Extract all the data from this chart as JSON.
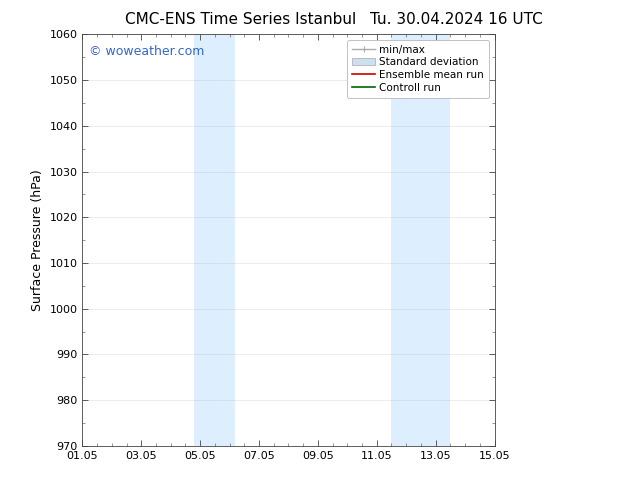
{
  "title_left": "CMC-ENS Time Series Istanbul",
  "title_right": "Tu. 30.04.2024 16 UTC",
  "ylabel": "Surface Pressure (hPa)",
  "xtick_labels": [
    "01.05",
    "03.05",
    "05.05",
    "07.05",
    "09.05",
    "11.05",
    "13.05",
    "15.05"
  ],
  "xtick_positions": [
    0,
    2,
    4,
    6,
    8,
    10,
    12,
    14
  ],
  "ylim": [
    970,
    1060
  ],
  "ytick_positions": [
    970,
    980,
    990,
    1000,
    1010,
    1020,
    1030,
    1040,
    1050,
    1060
  ],
  "ytick_labels": [
    "970",
    "980",
    "990",
    "1000",
    "1010",
    "1020",
    "1030",
    "1040",
    "1050",
    "1060"
  ],
  "shaded_bands": [
    {
      "x_start": 3.8,
      "x_end": 5.2
    },
    {
      "x_start": 10.5,
      "x_end": 12.5
    }
  ],
  "shade_color": "#ddeeff",
  "background_color": "#ffffff",
  "watermark_text": "© woweather.com",
  "watermark_color": "#3366cc",
  "watermark_fontsize": 9,
  "legend_entries": [
    {
      "label": "min/max",
      "color": "#aaaaaa",
      "lw": 1.0
    },
    {
      "label": "Standard deviation",
      "color": "#cce0f0",
      "lw": 6
    },
    {
      "label": "Ensemble mean run",
      "color": "#cc0000",
      "lw": 1.2
    },
    {
      "label": "Controll run",
      "color": "#006600",
      "lw": 1.2
    }
  ],
  "title_fontsize": 11,
  "axis_label_fontsize": 9,
  "tick_fontsize": 8,
  "legend_fontsize": 7.5,
  "grid_color": "#bbbbbb",
  "grid_alpha": 0.4,
  "xlim": [
    0,
    14
  ],
  "figsize": [
    6.34,
    4.9
  ],
  "dpi": 100
}
